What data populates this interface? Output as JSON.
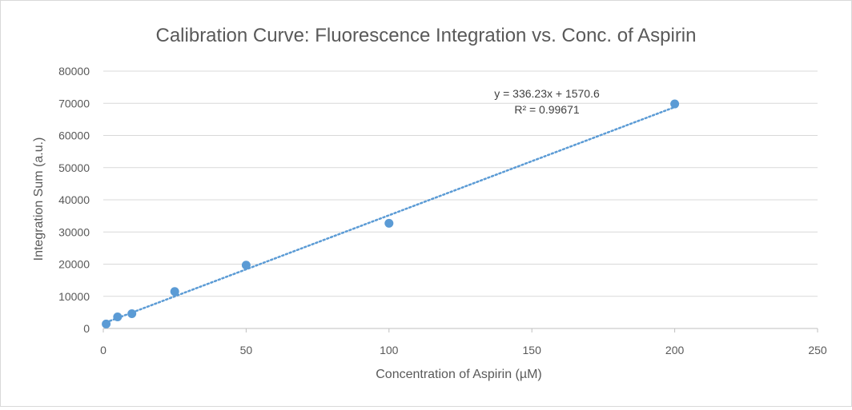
{
  "chart_data": {
    "type": "scatter",
    "title": "Calibration Curve: Fluorescence Integration vs. Conc. of Aspirin",
    "xlabel": "Concentration of Aspirin (µM)",
    "ylabel": "Integration Sum (a.u.)",
    "xlim": [
      0,
      250
    ],
    "ylim": [
      0,
      80000
    ],
    "x_ticks": [
      0,
      50,
      100,
      150,
      200,
      250
    ],
    "y_ticks": [
      0,
      10000,
      20000,
      30000,
      40000,
      50000,
      60000,
      70000,
      80000
    ],
    "grid": "horizontal",
    "legend": "none",
    "series": [
      {
        "x": [
          1,
          5,
          10,
          25,
          50,
          100,
          200
        ],
        "y": [
          1400,
          3600,
          4600,
          11500,
          19700,
          32700,
          69800
        ],
        "color": "#5b9bd5",
        "marker": "circle"
      }
    ],
    "trendline": {
      "type": "linear",
      "slope": 336.23,
      "intercept": 1570.6,
      "x_range": [
        1,
        200
      ],
      "style": "dotted",
      "color": "#5b9bd5",
      "equation_label": "y = 336.23x + 1570.6",
      "r2_label": "R² = 0.99671"
    }
  }
}
